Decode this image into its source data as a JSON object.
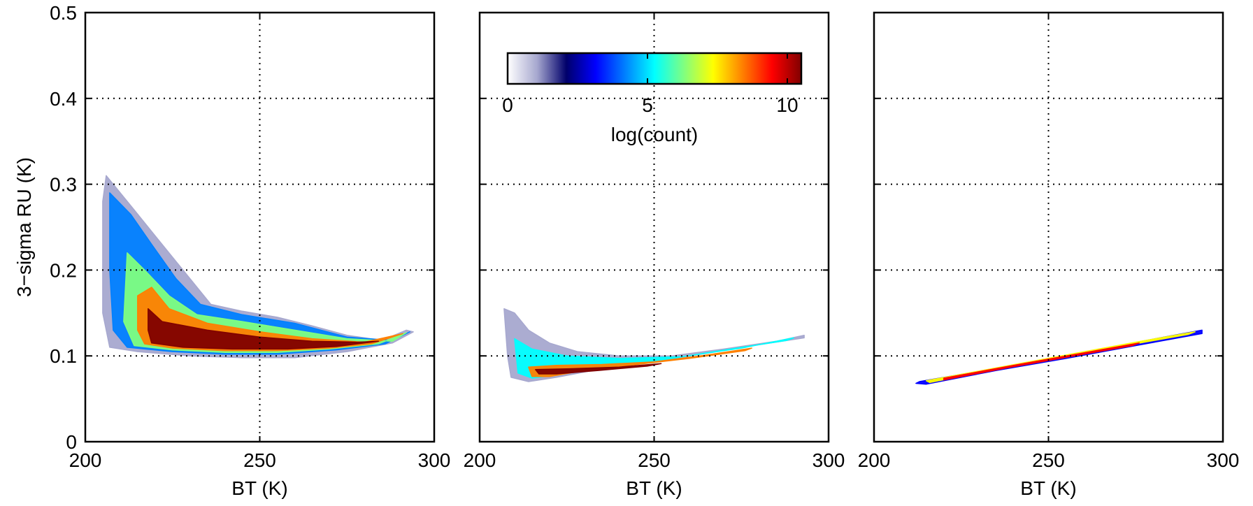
{
  "chart_data": [
    {
      "type": "heatmap",
      "panel": 1,
      "xlabel": "BT (K)",
      "ylabel": "3−sigma RU (K)",
      "xlim": [
        200,
        300
      ],
      "ylim": [
        0,
        0.5
      ],
      "x_ticks": [
        "200",
        "250",
        "300"
      ],
      "y_ticks": [
        "0",
        "0.1",
        "0.2",
        "0.3",
        "0.4",
        "0.5"
      ],
      "grid": true,
      "density_regions": [
        {
          "level": 1.5,
          "polygon": [
            [
              206,
              0.31
            ],
            [
              208,
              0.3
            ],
            [
              214,
              0.27
            ],
            [
              220,
              0.24
            ],
            [
              228,
              0.2
            ],
            [
              236,
              0.16
            ],
            [
              245,
              0.152
            ],
            [
              255,
              0.145
            ],
            [
              265,
              0.135
            ],
            [
              275,
              0.124
            ],
            [
              285,
              0.118
            ],
            [
              292,
              0.13
            ],
            [
              294,
              0.128
            ],
            [
              288,
              0.115
            ],
            [
              275,
              0.105
            ],
            [
              260,
              0.098
            ],
            [
              245,
              0.098
            ],
            [
              230,
              0.1
            ],
            [
              215,
              0.105
            ],
            [
              207,
              0.11
            ],
            [
              205,
              0.15
            ],
            [
              205,
              0.28
            ]
          ]
        },
        {
          "level": 4.5,
          "polygon": [
            [
              207,
              0.29
            ],
            [
              213,
              0.265
            ],
            [
              219,
              0.23
            ],
            [
              226,
              0.19
            ],
            [
              233,
              0.16
            ],
            [
              245,
              0.148
            ],
            [
              260,
              0.138
            ],
            [
              275,
              0.122
            ],
            [
              288,
              0.118
            ],
            [
              293,
              0.128
            ],
            [
              286,
              0.114
            ],
            [
              272,
              0.107
            ],
            [
              255,
              0.102
            ],
            [
              240,
              0.102
            ],
            [
              225,
              0.105
            ],
            [
              212,
              0.11
            ],
            [
              208,
              0.13
            ],
            [
              207,
              0.2
            ]
          ]
        },
        {
          "level": 6.5,
          "polygon": [
            [
              212,
              0.22
            ],
            [
              217,
              0.2
            ],
            [
              224,
              0.17
            ],
            [
              232,
              0.148
            ],
            [
              245,
              0.14
            ],
            [
              260,
              0.13
            ],
            [
              275,
              0.12
            ],
            [
              288,
              0.117
            ],
            [
              292,
              0.127
            ],
            [
              284,
              0.114
            ],
            [
              270,
              0.108
            ],
            [
              255,
              0.104
            ],
            [
              240,
              0.104
            ],
            [
              225,
              0.107
            ],
            [
              214,
              0.112
            ],
            [
              211,
              0.14
            ]
          ]
        },
        {
          "level": 8.5,
          "polygon": [
            [
              215,
              0.17
            ],
            [
              219,
              0.18
            ],
            [
              224,
              0.155
            ],
            [
              235,
              0.138
            ],
            [
              250,
              0.128
            ],
            [
              265,
              0.12
            ],
            [
              280,
              0.116
            ],
            [
              291,
              0.126
            ],
            [
              282,
              0.114
            ],
            [
              270,
              0.109
            ],
            [
              255,
              0.106
            ],
            [
              240,
              0.106
            ],
            [
              225,
              0.109
            ],
            [
              217,
              0.114
            ],
            [
              215,
              0.13
            ]
          ]
        },
        {
          "level": 10,
          "polygon": [
            [
              218,
              0.155
            ],
            [
              222,
              0.14
            ],
            [
              235,
              0.13
            ],
            [
              250,
              0.122
            ],
            [
              265,
              0.117
            ],
            [
              278,
              0.116
            ],
            [
              284,
              0.117
            ],
            [
              272,
              0.111
            ],
            [
              258,
              0.108
            ],
            [
              242,
              0.108
            ],
            [
              228,
              0.11
            ],
            [
              219,
              0.115
            ],
            [
              218,
              0.13
            ]
          ]
        }
      ]
    },
    {
      "type": "heatmap",
      "panel": 2,
      "xlabel": "BT (K)",
      "xlim": [
        200,
        300
      ],
      "ylim": [
        0,
        0.5
      ],
      "x_ticks": [
        "200",
        "250",
        "300"
      ],
      "grid": true,
      "colorbar": {
        "label": "log(count)",
        "range": [
          0,
          10.5
        ],
        "ticks": [
          "0",
          "5",
          "10"
        ],
        "colormap": [
          "#ffffff",
          "#a7a8cf",
          "#00006b",
          "#0000ff",
          "#0080ff",
          "#00ffff",
          "#80ff80",
          "#ffff00",
          "#ff8000",
          "#ff0000",
          "#800000"
        ]
      },
      "density_regions": [
        {
          "level": 1.5,
          "polygon": [
            [
              207,
              0.155
            ],
            [
              210,
              0.15
            ],
            [
              214,
              0.13
            ],
            [
              220,
              0.115
            ],
            [
              228,
              0.105
            ],
            [
              240,
              0.1
            ],
            [
              255,
              0.1
            ],
            [
              270,
              0.108
            ],
            [
              285,
              0.117
            ],
            [
              293,
              0.124
            ],
            [
              293,
              0.121
            ],
            [
              280,
              0.113
            ],
            [
              265,
              0.103
            ],
            [
              250,
              0.093
            ],
            [
              235,
              0.085
            ],
            [
              222,
              0.075
            ],
            [
              214,
              0.07
            ],
            [
              209,
              0.075
            ],
            [
              208,
              0.1
            ]
          ]
        },
        {
          "level": 5,
          "polygon": [
            [
              210,
              0.12
            ],
            [
              215,
              0.108
            ],
            [
              225,
              0.1
            ],
            [
              240,
              0.097
            ],
            [
              258,
              0.099
            ],
            [
              275,
              0.109
            ],
            [
              290,
              0.121
            ],
            [
              288,
              0.118
            ],
            [
              272,
              0.108
            ],
            [
              255,
              0.097
            ],
            [
              238,
              0.088
            ],
            [
              222,
              0.078
            ],
            [
              215,
              0.074
            ],
            [
              211,
              0.08
            ]
          ]
        },
        {
          "level": 8.5,
          "polygon": [
            [
              214,
              0.087
            ],
            [
              222,
              0.089
            ],
            [
              235,
              0.09
            ],
            [
              250,
              0.093
            ],
            [
              265,
              0.101
            ],
            [
              278,
              0.109
            ],
            [
              276,
              0.106
            ],
            [
              260,
              0.097
            ],
            [
              245,
              0.09
            ],
            [
              230,
              0.083
            ],
            [
              220,
              0.076
            ],
            [
              215,
              0.076
            ]
          ]
        },
        {
          "level": 10,
          "polygon": [
            [
              216,
              0.084
            ],
            [
              226,
              0.085
            ],
            [
              240,
              0.087
            ],
            [
              252,
              0.091
            ],
            [
              248,
              0.088
            ],
            [
              234,
              0.083
            ],
            [
              222,
              0.079
            ],
            [
              217,
              0.079
            ]
          ]
        }
      ]
    },
    {
      "type": "heatmap",
      "panel": 3,
      "xlabel": "BT (K)",
      "xlim": [
        200,
        300
      ],
      "ylim": [
        0,
        0.5
      ],
      "x_ticks": [
        "200",
        "250",
        "300"
      ],
      "grid": true,
      "density_regions": [
        {
          "level": 3,
          "polygon": [
            [
              213,
              0.07
            ],
            [
              230,
              0.082
            ],
            [
              250,
              0.097
            ],
            [
              270,
              0.112
            ],
            [
              290,
              0.127
            ],
            [
              294,
              0.13
            ],
            [
              294,
              0.126
            ],
            [
              275,
              0.112
            ],
            [
              255,
              0.097
            ],
            [
              235,
              0.083
            ],
            [
              215,
              0.067
            ],
            [
              212,
              0.068
            ]
          ]
        },
        {
          "level": 7,
          "polygon": [
            [
              215,
              0.071
            ],
            [
              235,
              0.086
            ],
            [
              255,
              0.101
            ],
            [
              275,
              0.116
            ],
            [
              292,
              0.128
            ],
            [
              290,
              0.125
            ],
            [
              272,
              0.112
            ],
            [
              252,
              0.097
            ],
            [
              232,
              0.082
            ],
            [
              216,
              0.069
            ]
          ]
        },
        {
          "level": 9.5,
          "polygon": [
            [
              220,
              0.074
            ],
            [
              240,
              0.089
            ],
            [
              258,
              0.102
            ],
            [
              276,
              0.115
            ],
            [
              274,
              0.112
            ],
            [
              256,
              0.099
            ],
            [
              238,
              0.086
            ],
            [
              220,
              0.072
            ]
          ]
        }
      ]
    }
  ]
}
